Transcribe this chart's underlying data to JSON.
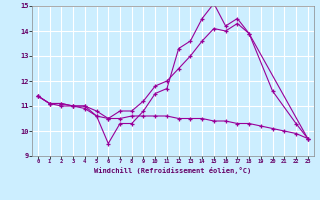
{
  "xlabel": "Windchill (Refroidissement éolien,°C)",
  "background_color": "#cceeff",
  "line_color": "#990099",
  "grid_color": "#ffffff",
  "xmin": 0,
  "xmax": 23,
  "ymin": 9,
  "ymax": 15,
  "x_ticks": [
    0,
    1,
    2,
    3,
    4,
    5,
    6,
    7,
    8,
    9,
    10,
    11,
    12,
    13,
    14,
    15,
    16,
    17,
    18,
    19,
    20,
    21,
    22,
    23
  ],
  "y_ticks": [
    9,
    10,
    11,
    12,
    13,
    14,
    15
  ],
  "series": [
    {
      "x": [
        0,
        1,
        2,
        3,
        4,
        5,
        6,
        7,
        8,
        9,
        10,
        11,
        12,
        13,
        14,
        15,
        16,
        17,
        18,
        20,
        22,
        23
      ],
      "y": [
        11.4,
        11.1,
        11.1,
        11.0,
        11.0,
        10.6,
        9.5,
        10.3,
        10.3,
        10.8,
        11.5,
        11.7,
        13.3,
        13.6,
        14.5,
        15.1,
        14.2,
        14.5,
        13.9,
        11.6,
        10.3,
        9.7
      ]
    },
    {
      "x": [
        0,
        1,
        2,
        3,
        4,
        5,
        6,
        7,
        8,
        9,
        10,
        11,
        12,
        13,
        14,
        15,
        16,
        17,
        18,
        23
      ],
      "y": [
        11.4,
        11.1,
        11.1,
        11.0,
        11.0,
        10.8,
        10.5,
        10.8,
        10.8,
        11.2,
        11.8,
        12.0,
        12.5,
        13.0,
        13.6,
        14.1,
        14.0,
        14.3,
        13.9,
        9.7
      ]
    },
    {
      "x": [
        0,
        1,
        2,
        3,
        4,
        5,
        6,
        7,
        8,
        9,
        10,
        11,
        12,
        13,
        14,
        15,
        16,
        17,
        18,
        19,
        20,
        21,
        22,
        23
      ],
      "y": [
        11.4,
        11.1,
        11.0,
        11.0,
        10.9,
        10.6,
        10.5,
        10.5,
        10.6,
        10.6,
        10.6,
        10.6,
        10.5,
        10.5,
        10.5,
        10.4,
        10.4,
        10.3,
        10.3,
        10.2,
        10.1,
        10.0,
        9.9,
        9.7
      ]
    }
  ]
}
